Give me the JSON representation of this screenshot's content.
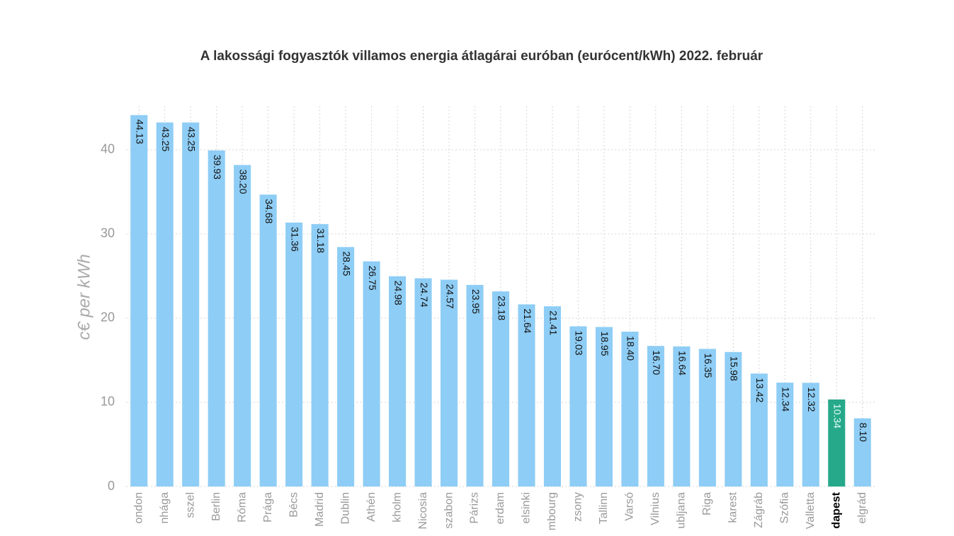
{
  "chart_data": {
    "type": "bar",
    "title": "A lakossági fogyasztók villamos energia átlagárai euróban (eurócent/kWh) 2022. február",
    "y_label": "c€ per kWh",
    "categories": [
      "ondon",
      "nhága",
      "sszel",
      "Berlin",
      "Róma",
      "Prága",
      "Bécs",
      "Madrid",
      "Dublin",
      "Athén",
      "kholm",
      "Nicosia",
      "szabon",
      "Párizs",
      "erdam",
      "elsinki",
      "mbourg",
      "zsony",
      "Tallinn",
      "Varsó",
      "Vilnius",
      "ubljana",
      "Riga",
      "karest",
      "Zágráb",
      "Szófia",
      "Valletta",
      "dapest",
      "elgrád"
    ],
    "values": [
      44.13,
      43.25,
      43.25,
      39.93,
      38.2,
      34.68,
      31.36,
      31.18,
      28.45,
      26.75,
      24.98,
      24.74,
      24.57,
      23.95,
      23.18,
      21.64,
      21.41,
      19.03,
      18.95,
      18.4,
      16.7,
      16.64,
      16.35,
      15.98,
      13.42,
      12.34,
      12.32,
      10.34,
      8.1
    ],
    "value_labels": [
      "44.13",
      "43.25",
      "43.25",
      "39.93",
      "38.20",
      "34.68",
      "31.36",
      "31.18",
      "28.45",
      "26.75",
      "24.98",
      "24.74",
      "24.57",
      "23.95",
      "23.18",
      "21.64",
      "21.41",
      "19.03",
      "18.95",
      "18.40",
      "16.70",
      "16.64",
      "16.35",
      "15.98",
      "13.42",
      "12.34",
      "12.32",
      "10.34",
      "8.10"
    ],
    "colors": [
      "#8ecdf5",
      "#8ecdf5",
      "#8ecdf5",
      "#8ecdf5",
      "#8ecdf5",
      "#8ecdf5",
      "#8ecdf5",
      "#8ecdf5",
      "#8ecdf5",
      "#8ecdf5",
      "#8ecdf5",
      "#8ecdf5",
      "#8ecdf5",
      "#8ecdf5",
      "#8ecdf5",
      "#8ecdf5",
      "#8ecdf5",
      "#8ecdf5",
      "#8ecdf5",
      "#8ecdf5",
      "#8ecdf5",
      "#8ecdf5",
      "#8ecdf5",
      "#8ecdf5",
      "#8ecdf5",
      "#8ecdf5",
      "#8ecdf5",
      "#26a98a",
      "#8ecdf5"
    ],
    "ylim": [
      0,
      45.2
    ],
    "yticks": [
      0,
      10,
      20,
      30,
      40
    ],
    "grid": true
  }
}
